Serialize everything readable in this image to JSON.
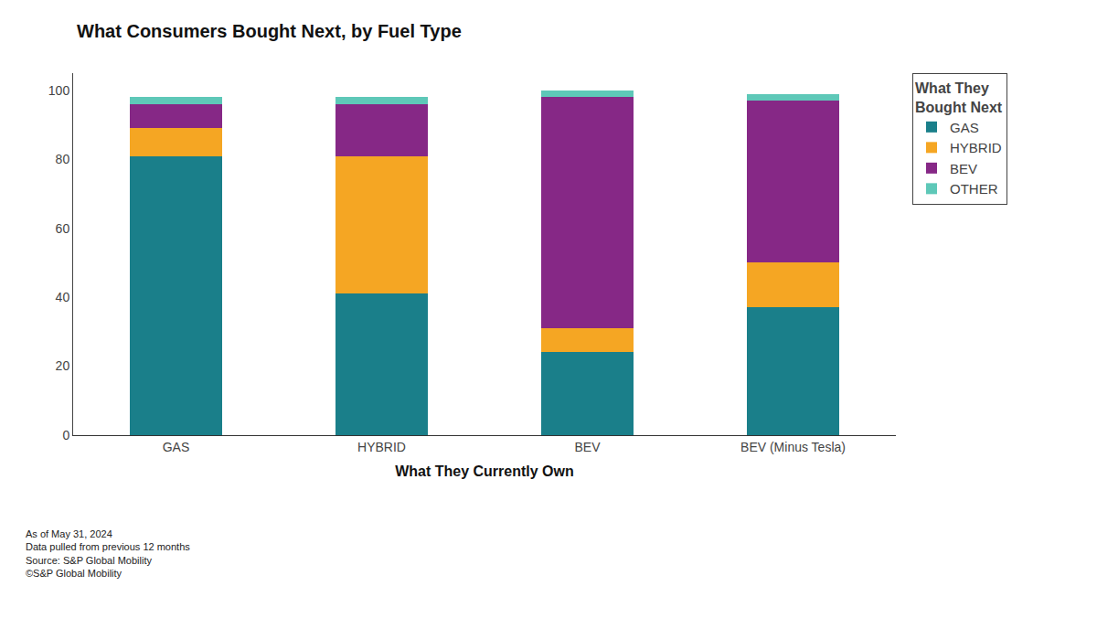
{
  "chart_data": {
    "type": "bar",
    "stacked": true,
    "title": "What Consumers Bought Next, by Fuel Type",
    "xlabel": "What They Currently Own",
    "categories": [
      "GAS",
      "HYBRID",
      "BEV",
      "BEV (Minus Tesla)"
    ],
    "series": [
      {
        "name": "GAS",
        "color": "#1a7f8a",
        "values": [
          81,
          41,
          24,
          37
        ]
      },
      {
        "name": "HYBRID",
        "color": "#f5a623",
        "values": [
          8,
          40,
          7,
          13
        ]
      },
      {
        "name": "BEV",
        "color": "#862886",
        "values": [
          7,
          15,
          67,
          47
        ]
      },
      {
        "name": "OTHER",
        "color": "#5ec8b8",
        "values": [
          2,
          2,
          2,
          2
        ]
      }
    ],
    "legend_title": "What They\nBought Next",
    "footnote": "As of May 31, 2024\nData pulled from previous 12 months\nSource: S&P Global Mobility\n©S&P Global Mobility",
    "ylim": [
      0,
      105
    ],
    "yticks": [
      0,
      20,
      40,
      60,
      80,
      100
    ],
    "grid": false,
    "legend": "right"
  }
}
